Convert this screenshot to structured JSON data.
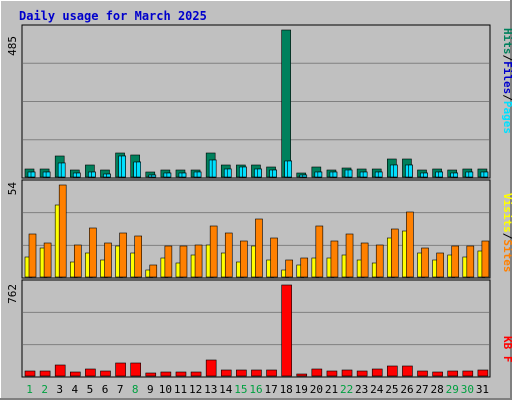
{
  "title": "Daily usage for March 2025",
  "colors": {
    "background": "#c0c0c0",
    "title": "#0000cc",
    "hits": "#00805c",
    "files": "#00e0ff",
    "pages": "#00e0ff",
    "sites": "#ff8000",
    "visits": "#ffff00",
    "kbytes": "#ff0000",
    "weekend_label": "#00a040",
    "weekday_label": "#000000",
    "grid": "#808080"
  },
  "chart_data": [
    {
      "type": "bar",
      "name": "hits-files-pages",
      "max_label": "485",
      "ylim": [
        0,
        485
      ],
      "legend": {
        "hits": "Hits",
        "sep1": "/",
        "files": "Files",
        "sep2": "/",
        "pages": "Pages"
      },
      "categories": [
        "1",
        "2",
        "3",
        "4",
        "5",
        "6",
        "7",
        "8",
        "9",
        "10",
        "11",
        "12",
        "13",
        "14",
        "15",
        "16",
        "17",
        "18",
        "19",
        "20",
        "21",
        "22",
        "23",
        "24",
        "25",
        "26",
        "27",
        "28",
        "29",
        "30",
        "31"
      ],
      "series": [
        {
          "name": "Hits",
          "values": [
            28,
            28,
            68,
            22,
            40,
            22,
            80,
            72,
            16,
            22,
            22,
            22,
            80,
            40,
            40,
            40,
            34,
            485,
            14,
            34,
            24,
            30,
            28,
            28,
            60,
            60,
            24,
            26,
            24,
            28,
            28
          ]
        },
        {
          "name": "Files",
          "values": [
            16,
            16,
            46,
            12,
            18,
            10,
            68,
            48,
            8,
            14,
            14,
            16,
            56,
            28,
            32,
            26,
            22,
            52,
            8,
            18,
            18,
            22,
            18,
            18,
            40,
            38,
            14,
            16,
            14,
            18,
            18
          ]
        },
        {
          "name": "Pages",
          "values": [
            16,
            16,
            46,
            12,
            18,
            10,
            68,
            48,
            8,
            14,
            14,
            16,
            56,
            28,
            32,
            26,
            22,
            52,
            8,
            18,
            18,
            22,
            18,
            18,
            40,
            38,
            14,
            16,
            14,
            18,
            18
          ]
        }
      ]
    },
    {
      "type": "bar",
      "name": "visits-sites",
      "max_label": "54",
      "ylim": [
        0,
        54
      ],
      "legend": {
        "visits": "Visits",
        "sep": "/",
        "sites": "Sites"
      },
      "categories": [
        "1",
        "2",
        "3",
        "4",
        "5",
        "6",
        "7",
        "8",
        "9",
        "10",
        "11",
        "12",
        "13",
        "14",
        "15",
        "16",
        "17",
        "18",
        "19",
        "20",
        "21",
        "22",
        "23",
        "24",
        "25",
        "26",
        "27",
        "28",
        "29",
        "30",
        "31"
      ],
      "series": [
        {
          "name": "Visits",
          "values": [
            12,
            17,
            42,
            9,
            14,
            10,
            18,
            14,
            4,
            11,
            8,
            13,
            19,
            14,
            9,
            18,
            10,
            4,
            7,
            11,
            11,
            13,
            10,
            8,
            23,
            27,
            14,
            10,
            13,
            12,
            15
          ]
        },
        {
          "name": "Sites",
          "values": [
            25,
            20,
            54,
            19,
            29,
            20,
            26,
            24,
            7,
            18,
            18,
            19,
            30,
            26,
            21,
            34,
            23,
            10,
            11,
            30,
            21,
            25,
            20,
            19,
            28,
            38,
            17,
            14,
            18,
            18,
            21
          ]
        }
      ]
    },
    {
      "type": "bar",
      "name": "kbytes",
      "max_label": "762",
      "ylim": [
        0,
        762
      ],
      "legend": {
        "kbytes": "KB F"
      },
      "categories": [
        "1",
        "2",
        "3",
        "4",
        "5",
        "6",
        "7",
        "8",
        "9",
        "10",
        "11",
        "12",
        "13",
        "14",
        "15",
        "16",
        "17",
        "18",
        "19",
        "20",
        "21",
        "22",
        "23",
        "24",
        "25",
        "26",
        "27",
        "28",
        "29",
        "30",
        "31"
      ],
      "series": [
        {
          "name": "KB F",
          "values": [
            40,
            40,
            90,
            30,
            60,
            45,
            110,
            110,
            22,
            30,
            35,
            35,
            135,
            50,
            50,
            50,
            50,
            762,
            20,
            55,
            40,
            50,
            45,
            55,
            85,
            85,
            40,
            35,
            40,
            45,
            50
          ]
        }
      ]
    }
  ],
  "day_labels": [
    "1",
    "2",
    "3",
    "4",
    "5",
    "6",
    "7",
    "8",
    "9",
    "10",
    "11",
    "12",
    "13",
    "14",
    "15",
    "16",
    "17",
    "18",
    "19",
    "20",
    "21",
    "22",
    "23",
    "24",
    "25",
    "26",
    "27",
    "28",
    "29",
    "30",
    "31"
  ],
  "weekend_days": [
    1,
    2,
    8,
    15,
    16,
    22,
    29,
    30
  ]
}
